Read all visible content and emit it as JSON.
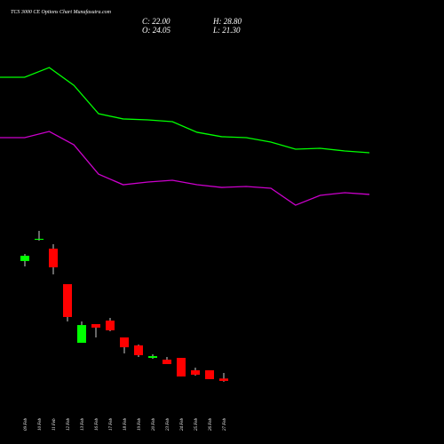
{
  "chart_data": [
    {
      "type": "candlestick",
      "title": "TCS 3000 CE Options Chart Munafasutra.com",
      "ohlc_labels": [
        "C: 22.00",
        "H: 28.80",
        "O: 24.05",
        "L: 21.30"
      ],
      "categories": [
        "09 Feb",
        "10 Feb",
        "11 Feb",
        "12 Feb",
        "13 Feb",
        "16 Feb",
        "17 Feb",
        "18 Feb",
        "19 Feb",
        "20 Feb",
        "23 Feb",
        "24 Feb",
        "25 Feb",
        "26 Feb",
        "27 Feb"
      ],
      "open": [
        124.6,
        142.8,
        135.2,
        104.8,
        54.6,
        70.6,
        73.6,
        59.2,
        52.4,
        41.7,
        40.2,
        41.7,
        31.1,
        31.1,
        24.05
      ],
      "high": [
        130.6,
        150.4,
        139.0,
        104.8,
        72.9,
        70.6,
        75.9,
        59.2,
        53.1,
        44.8,
        42.5,
        41.7,
        33.4,
        31.1,
        28.8
      ],
      "low": [
        120.0,
        142.0,
        113.2,
        72.9,
        54.6,
        59.2,
        64.5,
        45.5,
        42.5,
        41.0,
        36.4,
        25.8,
        26.5,
        23.5,
        21.3
      ],
      "close": [
        129.1,
        143.6,
        119.2,
        76.7,
        69.8,
        67.6,
        65.3,
        50.8,
        44.0,
        43.2,
        36.4,
        25.8,
        27.3,
        23.5,
        22.0
      ],
      "up_color": "#00ff00",
      "down_color": "#ff0000",
      "wick_color": "#cccccc",
      "ylim": [
        -32,
        348
      ]
    },
    {
      "type": "line",
      "categories": [
        null,
        null,
        null,
        null,
        null,
        null,
        null,
        null,
        null,
        null,
        null,
        null,
        null,
        null,
        null,
        null
      ],
      "series": [
        {
          "color": "#00ff00",
          "values": [
            281.9,
            281.9,
            290.2,
            275.0,
            250.7,
            246.2,
            245.4,
            243.9,
            234.8,
            231.0,
            230.2,
            226.4,
            220.3,
            221.1,
            218.8,
            217.3
          ]
        },
        {
          "color": "#cc00cc",
          "values": [
            230.2,
            230.2,
            235.5,
            224.1,
            199.0,
            189.9,
            192.2,
            193.7,
            189.9,
            187.6,
            188.4,
            186.9,
            172.4,
            180.8,
            183.1,
            181.6
          ]
        }
      ],
      "ylim": [
        -32,
        348
      ]
    }
  ]
}
